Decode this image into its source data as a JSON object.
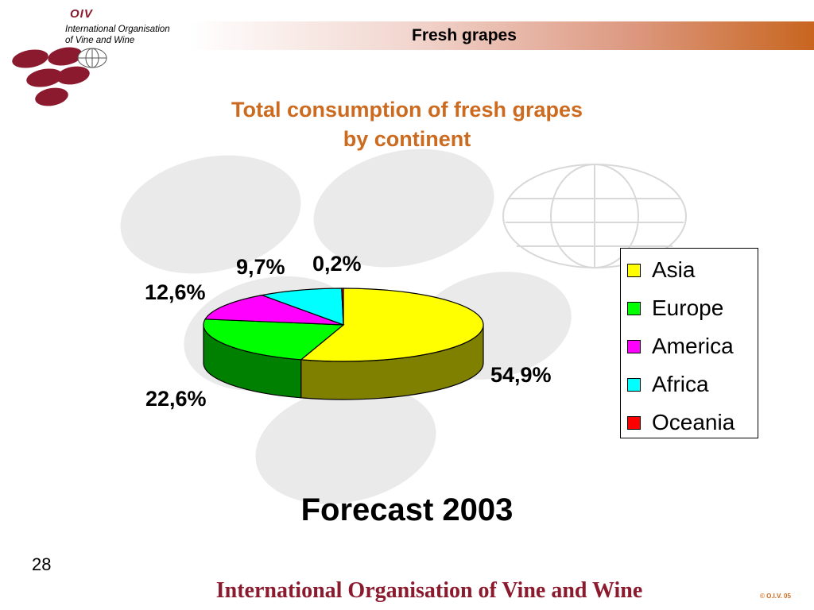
{
  "header": {
    "title": "Fresh grapes",
    "bar_color_start": "#ffffff",
    "bar_color_end": "#c8651f"
  },
  "logo": {
    "abbr": "OIV",
    "line1": "International Organisation",
    "line2": "of  Vine  and  Wine",
    "grape_color": "#8b1a2e"
  },
  "chart_data": {
    "type": "pie",
    "title_line1": "Total consumption  of fresh grapes",
    "title_line2": "by continent",
    "series": [
      {
        "name": "Asia",
        "value": 54.9,
        "label": "54,9%",
        "color": "#ffff00",
        "side_color": "#808000"
      },
      {
        "name": "Europe",
        "value": 22.6,
        "label": "22,6%",
        "color": "#00ff00",
        "side_color": "#008000"
      },
      {
        "name": "America",
        "value": 12.6,
        "label": "12,6%",
        "color": "#ff00ff",
        "side_color": "#800080"
      },
      {
        "name": "Africa",
        "value": 9.7,
        "label": "9,7%",
        "color": "#00ffff",
        "side_color": "#008080"
      },
      {
        "name": "Oceania",
        "value": 0.2,
        "label": "0,2%",
        "color": "#ff0000",
        "side_color": "#800000"
      }
    ],
    "legend_position": "right",
    "subtitle": "Forecast 2003"
  },
  "footer": {
    "page_number": "28",
    "organisation": "International Organisation of Vine and Wine",
    "copyright": "© O.I.V. 05"
  }
}
